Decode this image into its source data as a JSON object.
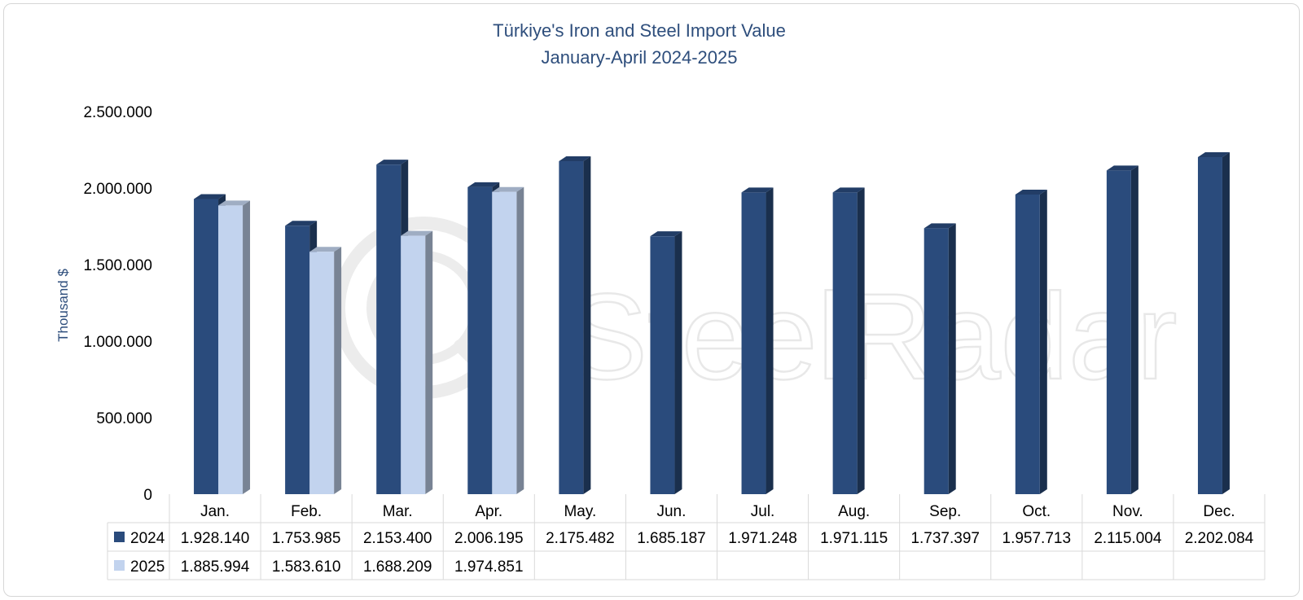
{
  "chart_data": {
    "type": "bar",
    "title": "Türkiye's Iron and Steel Import Value",
    "subtitle": "January-April 2024-2025",
    "ylabel": "Thousand  $",
    "xlabel": "",
    "ylim": [
      0,
      2500000
    ],
    "y_ticks": [
      {
        "value": 0,
        "label": "0"
      },
      {
        "value": 500000,
        "label": "500.000"
      },
      {
        "value": 1000000,
        "label": "1.000.000"
      },
      {
        "value": 1500000,
        "label": "1.500.000"
      },
      {
        "value": 2000000,
        "label": "2.000.000"
      },
      {
        "value": 2500000,
        "label": "2.500.000"
      }
    ],
    "grid": false,
    "style": "3d-column",
    "data_table": true,
    "categories": [
      "Jan.",
      "Feb.",
      "Mar.",
      "Apr.",
      "May.",
      "Jun.",
      "Jul.",
      "Aug.",
      "Sep.",
      "Oct.",
      "Nov.",
      "Dec."
    ],
    "series": [
      {
        "name": "2024",
        "color": "#2a4b7c",
        "values": [
          1928140,
          1753985,
          2153400,
          2006195,
          2175482,
          1685187,
          1971248,
          1971115,
          1737397,
          1957713,
          2115004,
          2202084
        ],
        "labels": [
          "1.928.140",
          "1.753.985",
          "2.153.400",
          "2.006.195",
          "2.175.482",
          "1.685.187",
          "1.971.248",
          "1.971.115",
          "1.737.397",
          "1.957.713",
          "2.115.004",
          "2.202.084"
        ]
      },
      {
        "name": "2025",
        "color": "#c2d3ee",
        "values": [
          1885994,
          1583610,
          1688209,
          1974851,
          null,
          null,
          null,
          null,
          null,
          null,
          null,
          null
        ],
        "labels": [
          "1.885.994",
          "1.583.610",
          "1.688.209",
          "1.974.851",
          "",
          "",
          "",
          "",
          "",
          "",
          "",
          ""
        ]
      }
    ]
  },
  "watermark": {
    "text": "SteelRadar"
  }
}
